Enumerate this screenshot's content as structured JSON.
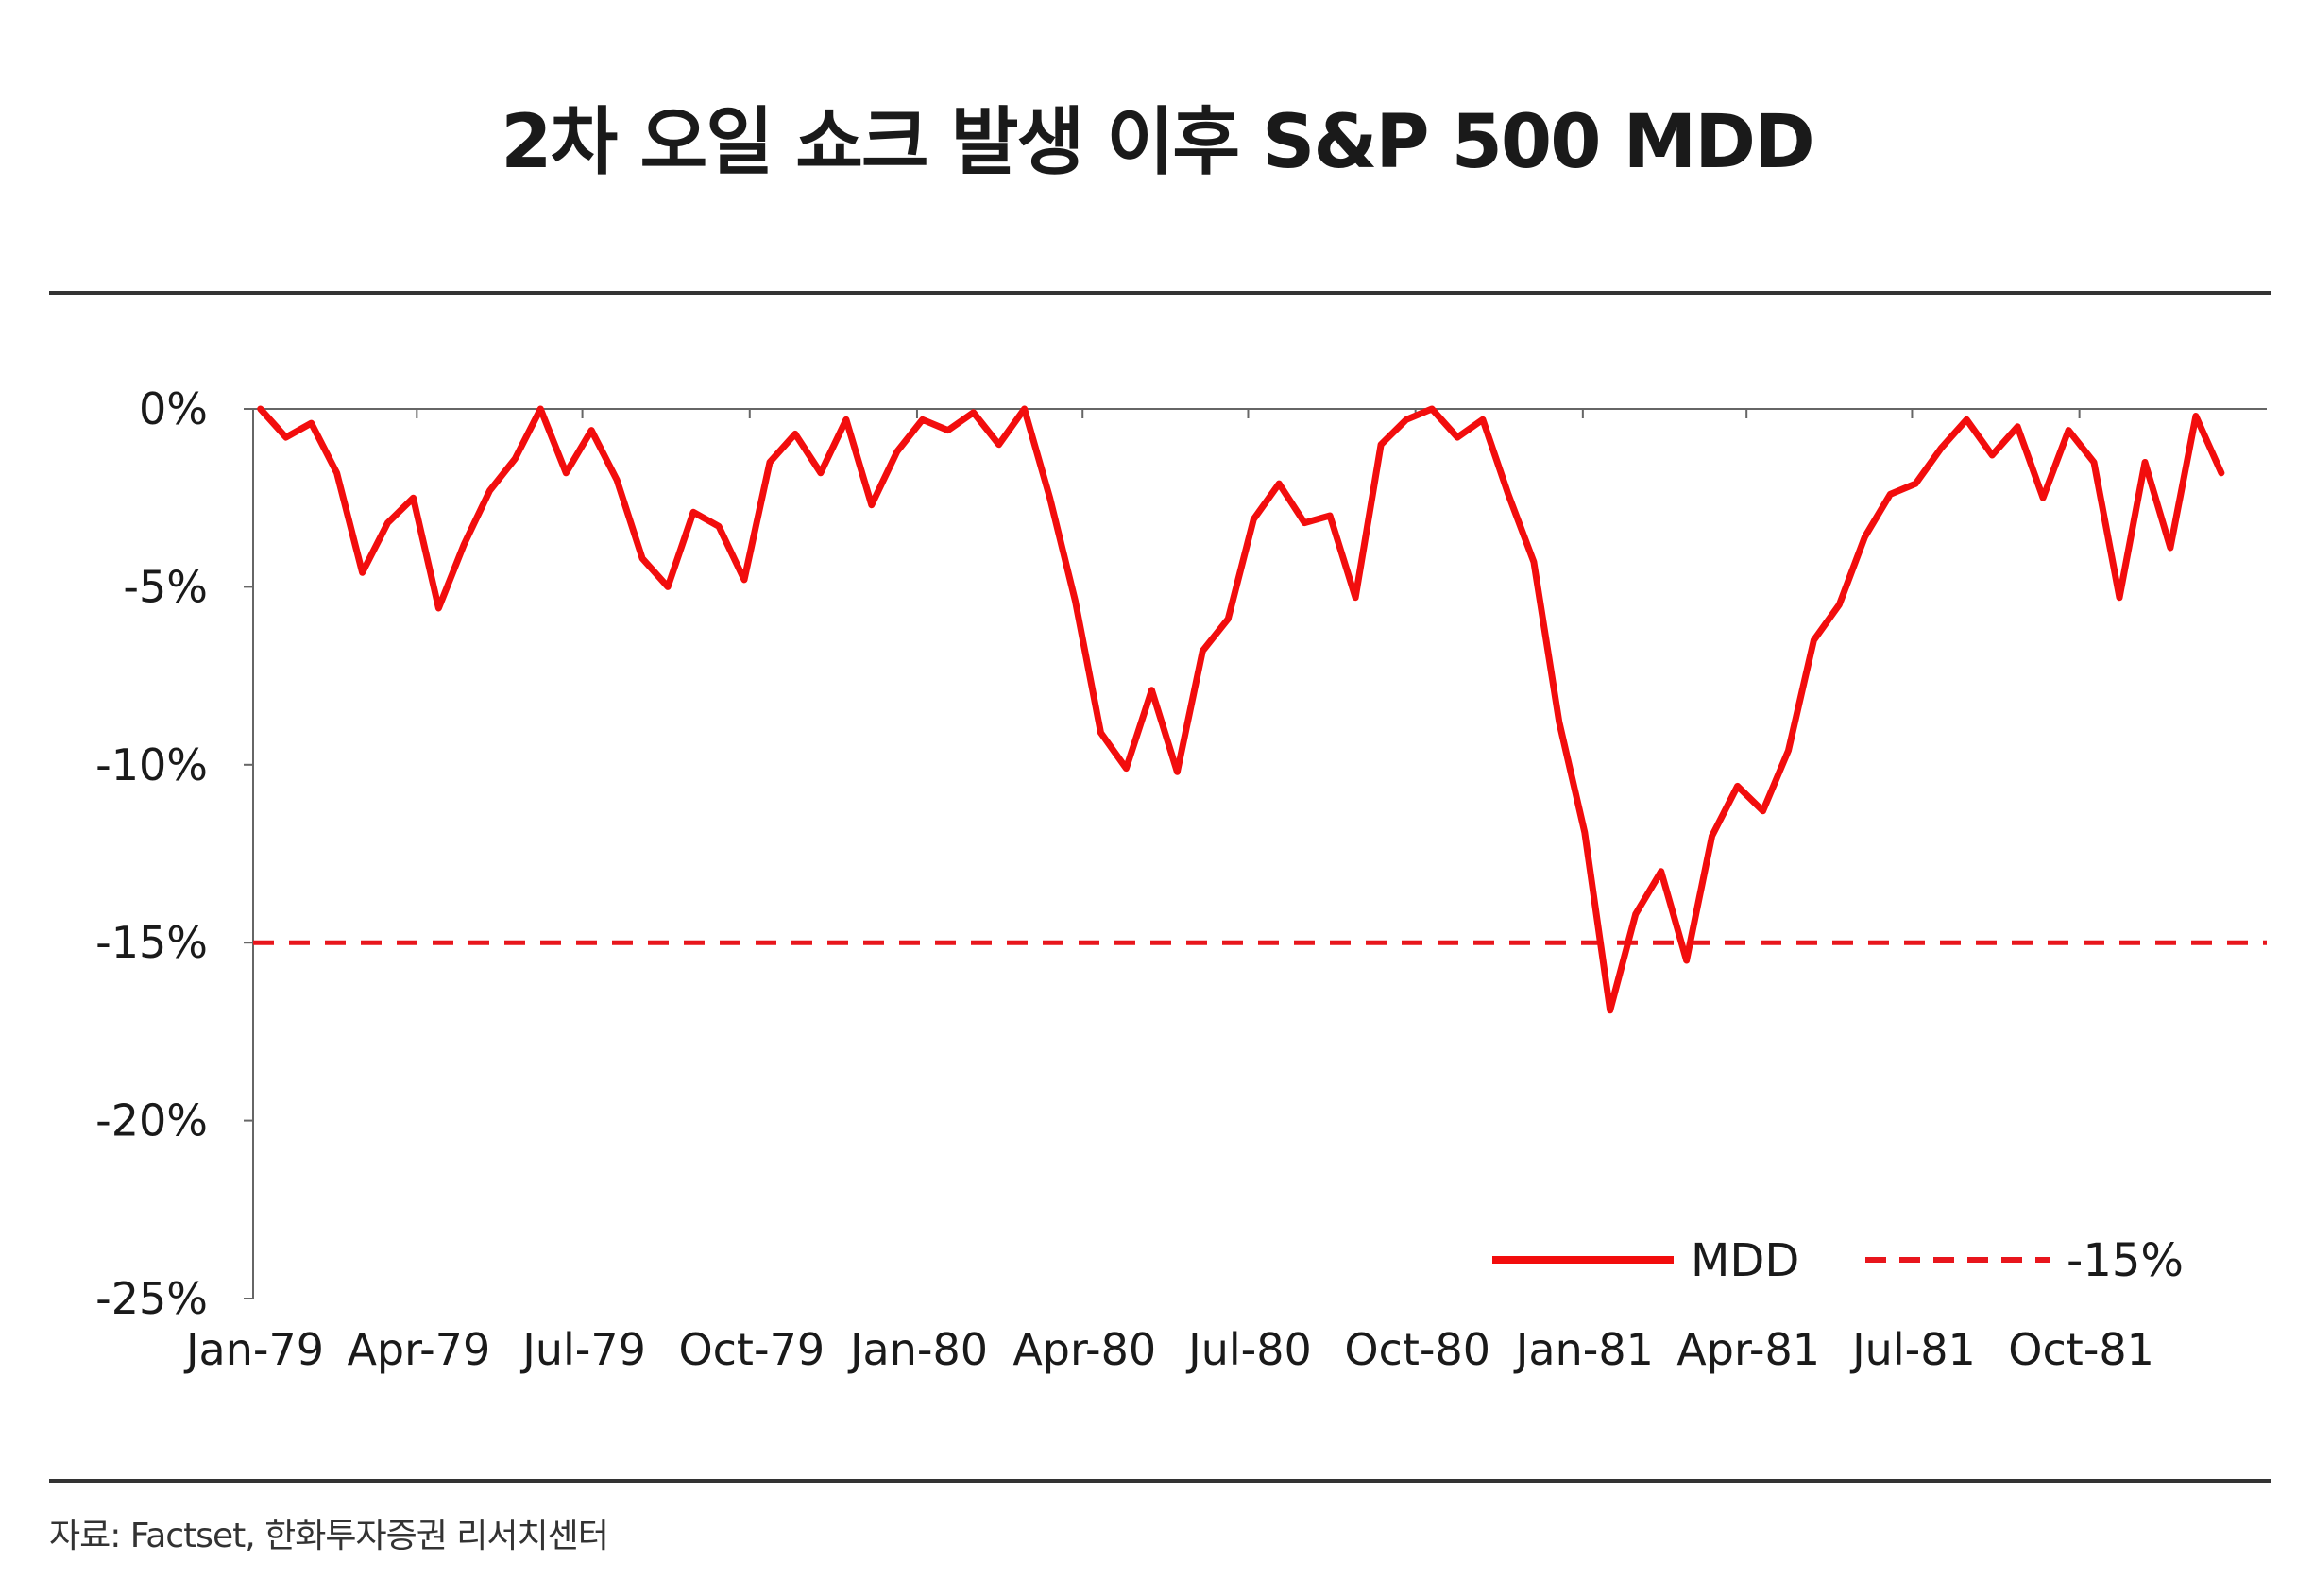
{
  "title": "2차 오일 쇼크 발생 이후 S&P 500 MDD",
  "source": "자료: Factset, 한화투자증권 리서치센터",
  "colors": {
    "mdd": "#f20d0d",
    "threshold": "#e8161c",
    "axis": "#666666",
    "rule": "#333333"
  },
  "chart_data": {
    "type": "line",
    "title": "2차 오일 쇼크 발생 이후 S&P 500 MDD",
    "xlabel": "",
    "ylabel": "",
    "ylim": [
      -25,
      0
    ],
    "y_ticks": [
      0,
      -5,
      -10,
      -15,
      -20,
      -25
    ],
    "y_tick_labels": [
      "0%",
      "-5%",
      "-10%",
      "-15%",
      "-20%",
      "-25%"
    ],
    "x_tick_labels": [
      "Jan-79",
      "Apr-79",
      "Jul-79",
      "Oct-79",
      "Jan-80",
      "Apr-80",
      "Jul-80",
      "Oct-80",
      "Jan-81",
      "Apr-81",
      "Jul-81",
      "Oct-81"
    ],
    "x_range": [
      "1979-01",
      "1981-12"
    ],
    "grid": false,
    "legend_position": "bottom-right",
    "series": [
      {
        "name": "MDD",
        "style": "solid",
        "unit": "%",
        "points": [
          [
            "1979-01-05",
            0.0
          ],
          [
            "1979-01-19",
            -0.8
          ],
          [
            "1979-02-02",
            -0.4
          ],
          [
            "1979-02-16",
            -1.8
          ],
          [
            "1979-03-02",
            -4.6
          ],
          [
            "1979-03-16",
            -3.2
          ],
          [
            "1979-03-30",
            -2.5
          ],
          [
            "1979-04-13",
            -5.6
          ],
          [
            "1979-04-27",
            -3.8
          ],
          [
            "1979-05-11",
            -2.3
          ],
          [
            "1979-05-25",
            -1.4
          ],
          [
            "1979-06-08",
            0.0
          ],
          [
            "1979-06-22",
            -1.8
          ],
          [
            "1979-07-06",
            -0.6
          ],
          [
            "1979-07-20",
            -2.0
          ],
          [
            "1979-08-03",
            -4.2
          ],
          [
            "1979-08-17",
            -5.0
          ],
          [
            "1979-08-31",
            -2.9
          ],
          [
            "1979-09-14",
            -3.3
          ],
          [
            "1979-09-28",
            -4.8
          ],
          [
            "1979-10-12",
            -1.5
          ],
          [
            "1979-10-26",
            -0.7
          ],
          [
            "1979-11-09",
            -1.8
          ],
          [
            "1979-11-23",
            -0.3
          ],
          [
            "1979-12-07",
            -2.7
          ],
          [
            "1979-12-21",
            -1.2
          ],
          [
            "1980-01-04",
            -0.3
          ],
          [
            "1980-01-18",
            -0.6
          ],
          [
            "1980-02-01",
            -0.1
          ],
          [
            "1980-02-15",
            -1.0
          ],
          [
            "1980-02-29",
            0.0
          ],
          [
            "1980-03-14",
            -2.5
          ],
          [
            "1980-03-28",
            -5.4
          ],
          [
            "1980-04-11",
            -9.1
          ],
          [
            "1980-04-25",
            -10.1
          ],
          [
            "1980-05-09",
            -7.9
          ],
          [
            "1980-05-23",
            -10.2
          ],
          [
            "1980-06-06",
            -6.8
          ],
          [
            "1980-06-20",
            -5.9
          ],
          [
            "1980-07-04",
            -3.1
          ],
          [
            "1980-07-18",
            -2.1
          ],
          [
            "1980-08-01",
            -3.2
          ],
          [
            "1980-08-15",
            -3.0
          ],
          [
            "1980-08-29",
            -5.3
          ],
          [
            "1980-09-12",
            -1.0
          ],
          [
            "1980-09-26",
            -0.3
          ],
          [
            "1980-10-10",
            0.0
          ],
          [
            "1980-10-24",
            -0.8
          ],
          [
            "1980-11-07",
            -0.3
          ],
          [
            "1980-11-21",
            -2.4
          ],
          [
            "1980-12-05",
            -4.3
          ],
          [
            "1980-12-19",
            -8.8
          ],
          [
            "1981-01-02",
            -11.9
          ],
          [
            "1981-01-16",
            -16.9
          ],
          [
            "1981-01-30",
            -14.2
          ],
          [
            "1981-02-13",
            -13.0
          ],
          [
            "1981-02-27",
            -15.5
          ],
          [
            "1981-03-13",
            -12.0
          ],
          [
            "1981-03-27",
            -10.6
          ],
          [
            "1981-04-10",
            -11.3
          ],
          [
            "1981-04-24",
            -9.6
          ],
          [
            "1981-05-08",
            -6.5
          ],
          [
            "1981-05-22",
            -5.5
          ],
          [
            "1981-06-05",
            -3.6
          ],
          [
            "1981-06-19",
            -2.4
          ],
          [
            "1981-07-03",
            -2.1
          ],
          [
            "1981-07-17",
            -1.1
          ],
          [
            "1981-07-31",
            -0.3
          ],
          [
            "1981-08-14",
            -1.3
          ],
          [
            "1981-08-28",
            -0.5
          ],
          [
            "1981-09-11",
            -2.5
          ],
          [
            "1981-09-25",
            -0.6
          ],
          [
            "1981-10-09",
            -1.5
          ],
          [
            "1981-10-23",
            -5.3
          ],
          [
            "1981-11-06",
            -1.5
          ],
          [
            "1981-11-20",
            -3.9
          ],
          [
            "1981-12-04",
            -0.2
          ],
          [
            "1981-12-18",
            -1.8
          ]
        ]
      },
      {
        "name": "-15%",
        "style": "dashed",
        "unit": "%",
        "value": -15
      }
    ]
  }
}
